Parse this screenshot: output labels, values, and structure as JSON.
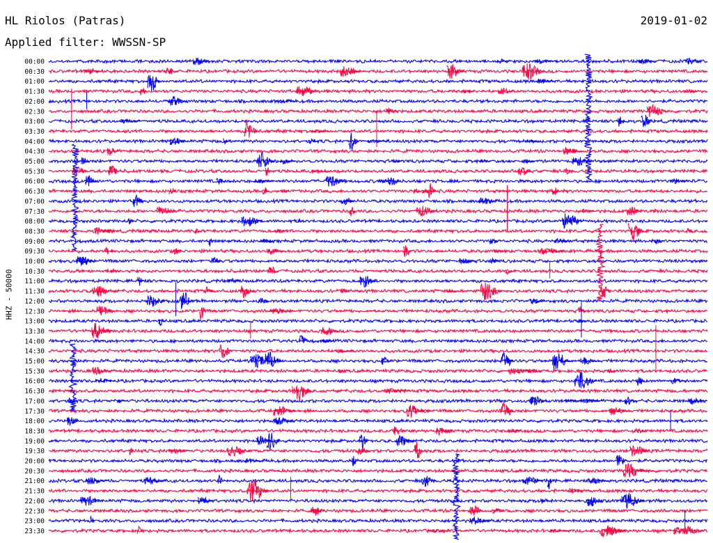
{
  "header": {
    "station": "HL Riolos (Patras)",
    "filter": "Applied filter: WWSSN-SP",
    "date": "2019-01-02"
  },
  "chart_data": {
    "type": "line",
    "ylabel": "HHZ - 50000",
    "row_labels": [
      "00:00",
      "00:30",
      "01:00",
      "01:30",
      "02:00",
      "02:30",
      "03:00",
      "03:30",
      "04:00",
      "04:30",
      "05:00",
      "05:30",
      "06:00",
      "06:30",
      "07:00",
      "07:30",
      "08:00",
      "08:30",
      "09:00",
      "09:30",
      "10:00",
      "10:30",
      "11:00",
      "11:30",
      "12:00",
      "12:30",
      "13:00",
      "13:30",
      "14:00",
      "14:30",
      "15:00",
      "15:30",
      "16:00",
      "16:30",
      "17:00",
      "17:30",
      "18:00",
      "18:30",
      "19:00",
      "19:30",
      "20:00",
      "20:30",
      "21:00",
      "21:30",
      "22:00",
      "22:30",
      "23:00",
      "23:30"
    ],
    "series_colors": [
      "#0000ff",
      "#ff0040"
    ],
    "grid": false
  }
}
